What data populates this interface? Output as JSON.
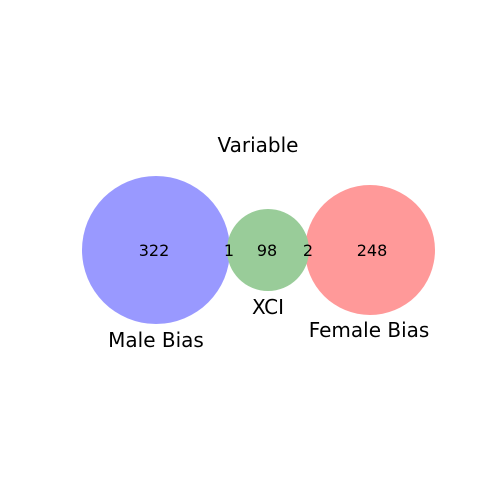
{
  "title": "Variable",
  "sets": {
    "male": {
      "label": "Male Bias",
      "color": "#9999ff"
    },
    "xci": {
      "label": "XCI",
      "color": "#99cc99"
    },
    "female": {
      "label": "Female Bias",
      "color": "#ff9999"
    }
  },
  "counts": {
    "male_only": "322",
    "male_xci": "1",
    "xci_only": "98",
    "xci_female": "2",
    "female_only": "248"
  }
}
